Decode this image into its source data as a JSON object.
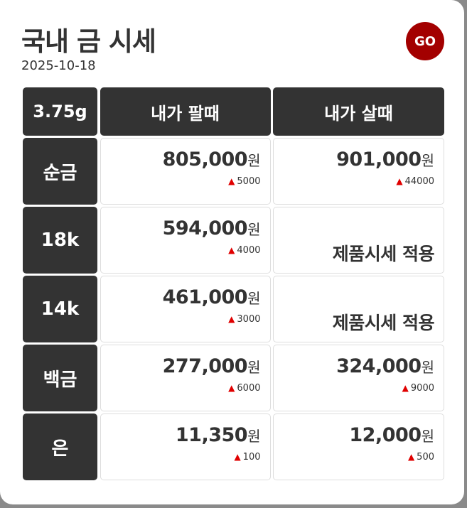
{
  "header": {
    "title": "국내 금 시세",
    "date": "2025-10-18",
    "go_label": "GO"
  },
  "table": {
    "columns": [
      "3.75g",
      "내가 팔때",
      "내가 살때"
    ],
    "currency": "원",
    "rows": [
      {
        "label": "순금",
        "sell": {
          "price": "805,000",
          "change": "5000"
        },
        "buy": {
          "price": "901,000",
          "change": "44000"
        }
      },
      {
        "label": "18k",
        "sell": {
          "price": "594,000",
          "change": "4000"
        },
        "buy": {
          "text": "제품시세 적용"
        }
      },
      {
        "label": "14k",
        "sell": {
          "price": "461,000",
          "change": "3000"
        },
        "buy": {
          "text": "제품시세 적용"
        }
      },
      {
        "label": "백금",
        "sell": {
          "price": "277,000",
          "change": "6000"
        },
        "buy": {
          "price": "324,000",
          "change": "9000"
        }
      },
      {
        "label": "은",
        "sell": {
          "price": "11,350",
          "change": "100"
        },
        "buy": {
          "price": "12,000",
          "change": "500"
        }
      }
    ]
  },
  "colors": {
    "header_bg": "#333333",
    "go": "#a30000",
    "up": "#e00000"
  },
  "icons": {
    "change": "triangle-up-icon"
  }
}
